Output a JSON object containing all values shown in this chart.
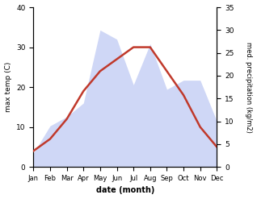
{
  "months": [
    "Jan",
    "Feb",
    "Mar",
    "Apr",
    "May",
    "Jun",
    "Jul",
    "Aug",
    "Sep",
    "Oct",
    "Nov",
    "Dec"
  ],
  "temperature": [
    4,
    7,
    12,
    19,
    24,
    27,
    30,
    30,
    24,
    18,
    10,
    5
  ],
  "precipitation": [
    3,
    9,
    11,
    14,
    30,
    28,
    18,
    27,
    17,
    19,
    19,
    10
  ],
  "temp_color": "#c0392b",
  "precip_color_fill": "#b0bdf0",
  "temp_ylim": [
    0,
    40
  ],
  "precip_ylim": [
    0,
    35
  ],
  "xlabel": "date (month)",
  "ylabel_left": "max temp (C)",
  "ylabel_right": "med. precipitation (kg/m2)",
  "temp_linewidth": 1.8,
  "fill_alpha": 0.6,
  "background_color": "#ffffff",
  "left_yticks": [
    0,
    10,
    20,
    30,
    40
  ],
  "right_yticks": [
    0,
    5,
    10,
    15,
    20,
    25,
    30,
    35
  ]
}
